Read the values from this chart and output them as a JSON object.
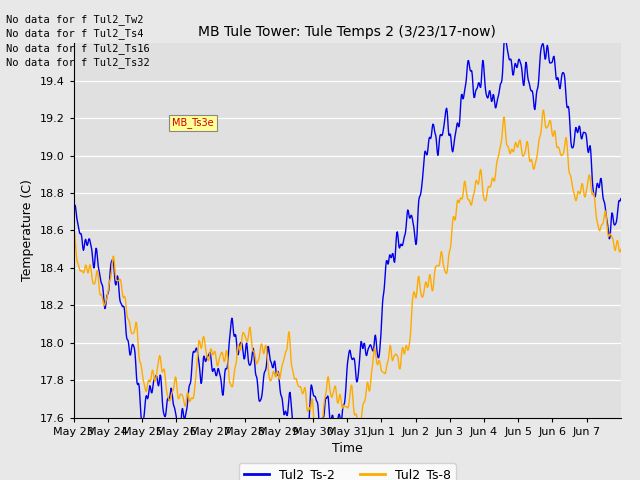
{
  "title": "MB Tule Tower: Tule Temps 2 (3/23/17-now)",
  "xlabel": "Time",
  "ylabel": "Temperature (C)",
  "fig_facecolor": "#e8e8e8",
  "plot_bg_color": "#e0e0e0",
  "legend_facecolor": "#ffffff",
  "line1_color": "#0000ee",
  "line2_color": "#ffaa00",
  "line1_label": "Tul2_Ts-2",
  "line2_label": "Tul2_Ts-8",
  "ylim": [
    17.6,
    19.6
  ],
  "yticks": [
    17.6,
    17.8,
    18.0,
    18.2,
    18.4,
    18.6,
    18.8,
    19.0,
    19.2,
    19.4
  ],
  "x_tick_labels": [
    "May 23",
    "May 24",
    "May 25",
    "May 26",
    "May 27",
    "May 28",
    "May 29",
    "May 30",
    "May 31",
    "Jun 1",
    "Jun 2",
    "Jun 3",
    "Jun 4",
    "Jun 5",
    "Jun 6",
    "Jun 7"
  ],
  "no_data_lines": [
    "No data for f Tul2_Tw2",
    "No data for f Tul2_Ts4",
    "No data for f Tul2_Ts16",
    "No data for f Tul2_Ts32"
  ],
  "tooltip_text": "MB_Ts3e",
  "num_points": 1000
}
